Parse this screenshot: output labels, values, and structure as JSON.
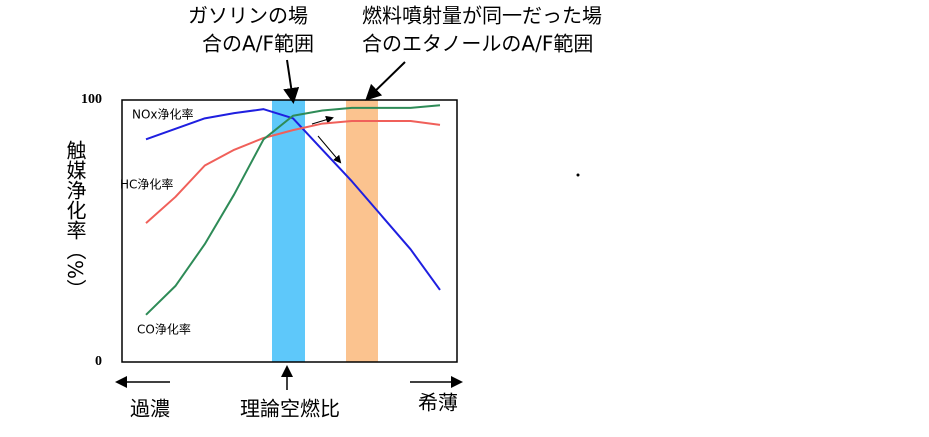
{
  "chart_data": {
    "type": "line",
    "annotations": [
      [
        "ガソリンの場",
        "合のA/F範囲"
      ],
      [
        "燃料噴射量が同一だった場",
        "合のエタノールのA/F範囲"
      ]
    ],
    "y_label": "触媒浄化率（%）",
    "x_labels": [
      "過濃",
      "理論空燃比",
      "希薄"
    ],
    "categories": [
      null,
      null,
      null,
      null,
      null,
      null,
      null,
      null,
      null,
      null,
      null
    ],
    "ylim": [
      0,
      100
    ],
    "yticks": [
      0,
      100
    ],
    "grid": false,
    "series": [
      {
        "name": "NOx浄化率",
        "color": "#1f1fe0",
        "values": [
          85,
          89,
          93,
          95,
          96.5,
          93,
          81,
          69,
          56,
          43,
          27.5
        ]
      },
      {
        "name": "HC浄化率",
        "color": "#f0605a",
        "values": [
          53,
          63,
          75,
          81,
          85.5,
          88.5,
          91,
          92,
          92,
          92,
          90.5
        ]
      },
      {
        "name": "CO浄化率",
        "color": "#2e8b57",
        "values": [
          18,
          29,
          45,
          64,
          85,
          94,
          96,
          97,
          97,
          97,
          98
        ]
      }
    ]
  }
}
